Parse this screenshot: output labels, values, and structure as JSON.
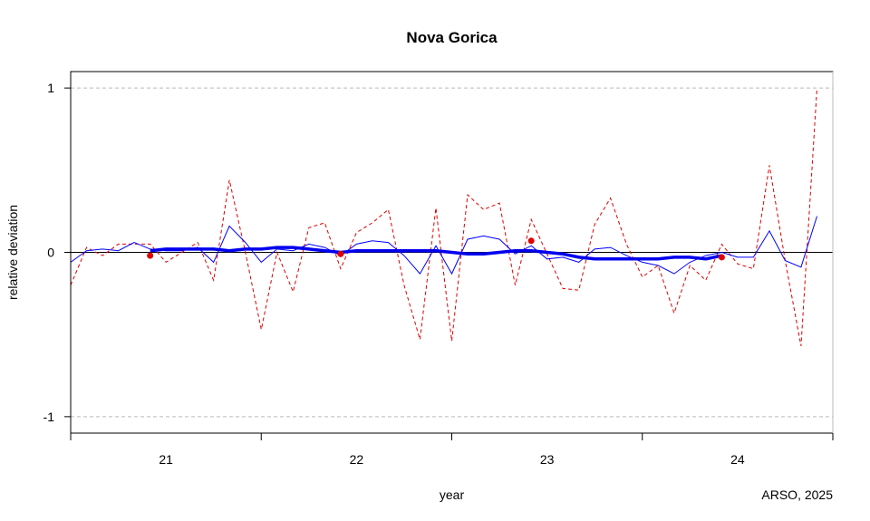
{
  "chart_data": {
    "type": "line",
    "title": "Nova Gorica",
    "xlabel": "year",
    "ylabel": "relative deviation",
    "credit": "ARSO, 2025",
    "xlim": [
      20.5,
      24.5
    ],
    "ylim": [
      -1.1,
      1.1
    ],
    "y_ticks": [
      -1,
      0,
      1
    ],
    "y_tick_labels": [
      "-1",
      "0",
      "1"
    ],
    "x_tick_labels": [
      {
        "x": 21,
        "label": "21"
      },
      {
        "x": 22,
        "label": "22"
      },
      {
        "x": 23,
        "label": "23"
      },
      {
        "x": 24,
        "label": "24"
      }
    ],
    "reference_lines": [
      -1,
      0,
      1
    ],
    "grid": false,
    "colors": {
      "monthly": "#e00000",
      "smoothed": "#0000ff",
      "trend": "#0000ee",
      "annual": "#e00000",
      "zero": "#000000",
      "dashed_ref": "#bbbbbb"
    },
    "series": [
      {
        "name": "",
        "style": "dashed",
        "x": [
          20.5,
          20.583,
          20.667,
          20.75,
          20.833,
          20.917,
          21.0,
          21.083,
          21.167,
          21.25,
          21.333,
          21.417,
          21.5,
          21.583,
          21.667,
          21.75,
          21.833,
          21.917,
          22.0,
          22.083,
          22.167,
          22.25,
          22.333,
          22.417,
          22.5,
          22.583,
          22.667,
          22.75,
          22.833,
          22.917,
          23.0,
          23.083,
          23.167,
          23.25,
          23.333,
          23.417,
          23.5,
          23.583,
          23.667,
          23.75,
          23.833,
          23.917,
          24.0,
          24.083,
          24.167,
          24.25,
          24.333,
          24.417
        ],
        "values": [
          -0.2,
          0.03,
          -0.02,
          0.05,
          0.05,
          0.05,
          -0.06,
          0.0,
          0.06,
          -0.17,
          0.44,
          0.0,
          -0.47,
          0.0,
          -0.24,
          0.15,
          0.18,
          -0.1,
          0.12,
          0.18,
          0.26,
          -0.2,
          -0.53,
          0.27,
          -0.54,
          0.35,
          0.26,
          0.3,
          -0.2,
          0.2,
          -0.01,
          -0.22,
          -0.23,
          0.17,
          0.33,
          0.05,
          -0.15,
          -0.08,
          -0.37,
          -0.08,
          -0.17,
          0.05,
          -0.07,
          -0.1,
          0.53,
          -0.05,
          -0.57,
          1.0
        ]
      },
      {
        "name": "",
        "style": "thin",
        "x": [
          20.5,
          20.583,
          20.667,
          20.75,
          20.833,
          20.917,
          21.0,
          21.083,
          21.167,
          21.25,
          21.333,
          21.417,
          21.5,
          21.583,
          21.667,
          21.75,
          21.833,
          21.917,
          22.0,
          22.083,
          22.167,
          22.25,
          22.333,
          22.417,
          22.5,
          22.583,
          22.667,
          22.75,
          22.833,
          22.917,
          23.0,
          23.083,
          23.167,
          23.25,
          23.333,
          23.417,
          23.5,
          23.583,
          23.667,
          23.75,
          23.833,
          23.917,
          24.0,
          24.083,
          24.167,
          24.25,
          24.333,
          24.417
        ],
        "values": [
          -0.06,
          0.01,
          0.02,
          0.01,
          0.06,
          0.02,
          0.01,
          0.01,
          0.03,
          -0.06,
          0.16,
          0.06,
          -0.06,
          0.02,
          0.01,
          0.05,
          0.03,
          -0.02,
          0.05,
          0.07,
          0.06,
          -0.02,
          -0.13,
          0.04,
          -0.13,
          0.08,
          0.1,
          0.08,
          -0.01,
          0.04,
          -0.04,
          -0.03,
          -0.06,
          0.02,
          0.03,
          -0.02,
          -0.06,
          -0.08,
          -0.13,
          -0.06,
          -0.02,
          0.0,
          -0.03,
          -0.03,
          0.13,
          -0.05,
          -0.09,
          0.22
        ]
      },
      {
        "name": "",
        "style": "thick",
        "x": [
          20.917,
          21.0,
          21.083,
          21.167,
          21.25,
          21.333,
          21.417,
          21.5,
          21.583,
          21.667,
          21.75,
          21.833,
          21.917,
          22.0,
          22.083,
          22.167,
          22.25,
          22.333,
          22.417,
          22.5,
          22.583,
          22.667,
          22.75,
          22.833,
          22.917,
          23.0,
          23.083,
          23.167,
          23.25,
          23.333,
          23.417,
          23.5,
          23.583,
          23.667,
          23.75,
          23.833,
          23.917
        ],
        "values": [
          0.01,
          0.02,
          0.02,
          0.02,
          0.02,
          0.01,
          0.02,
          0.02,
          0.03,
          0.03,
          0.02,
          0.01,
          0.0,
          0.01,
          0.01,
          0.01,
          0.01,
          0.01,
          0.01,
          0.0,
          -0.01,
          -0.01,
          0.0,
          0.01,
          0.01,
          0.0,
          -0.01,
          -0.03,
          -0.04,
          -0.04,
          -0.04,
          -0.04,
          -0.04,
          -0.03,
          -0.03,
          -0.04,
          -0.02
        ]
      },
      {
        "name": "",
        "style": "points",
        "x": [
          20.917,
          21.917,
          22.917,
          23.917
        ],
        "values": [
          -0.02,
          -0.01,
          0.07,
          -0.03
        ]
      }
    ]
  }
}
